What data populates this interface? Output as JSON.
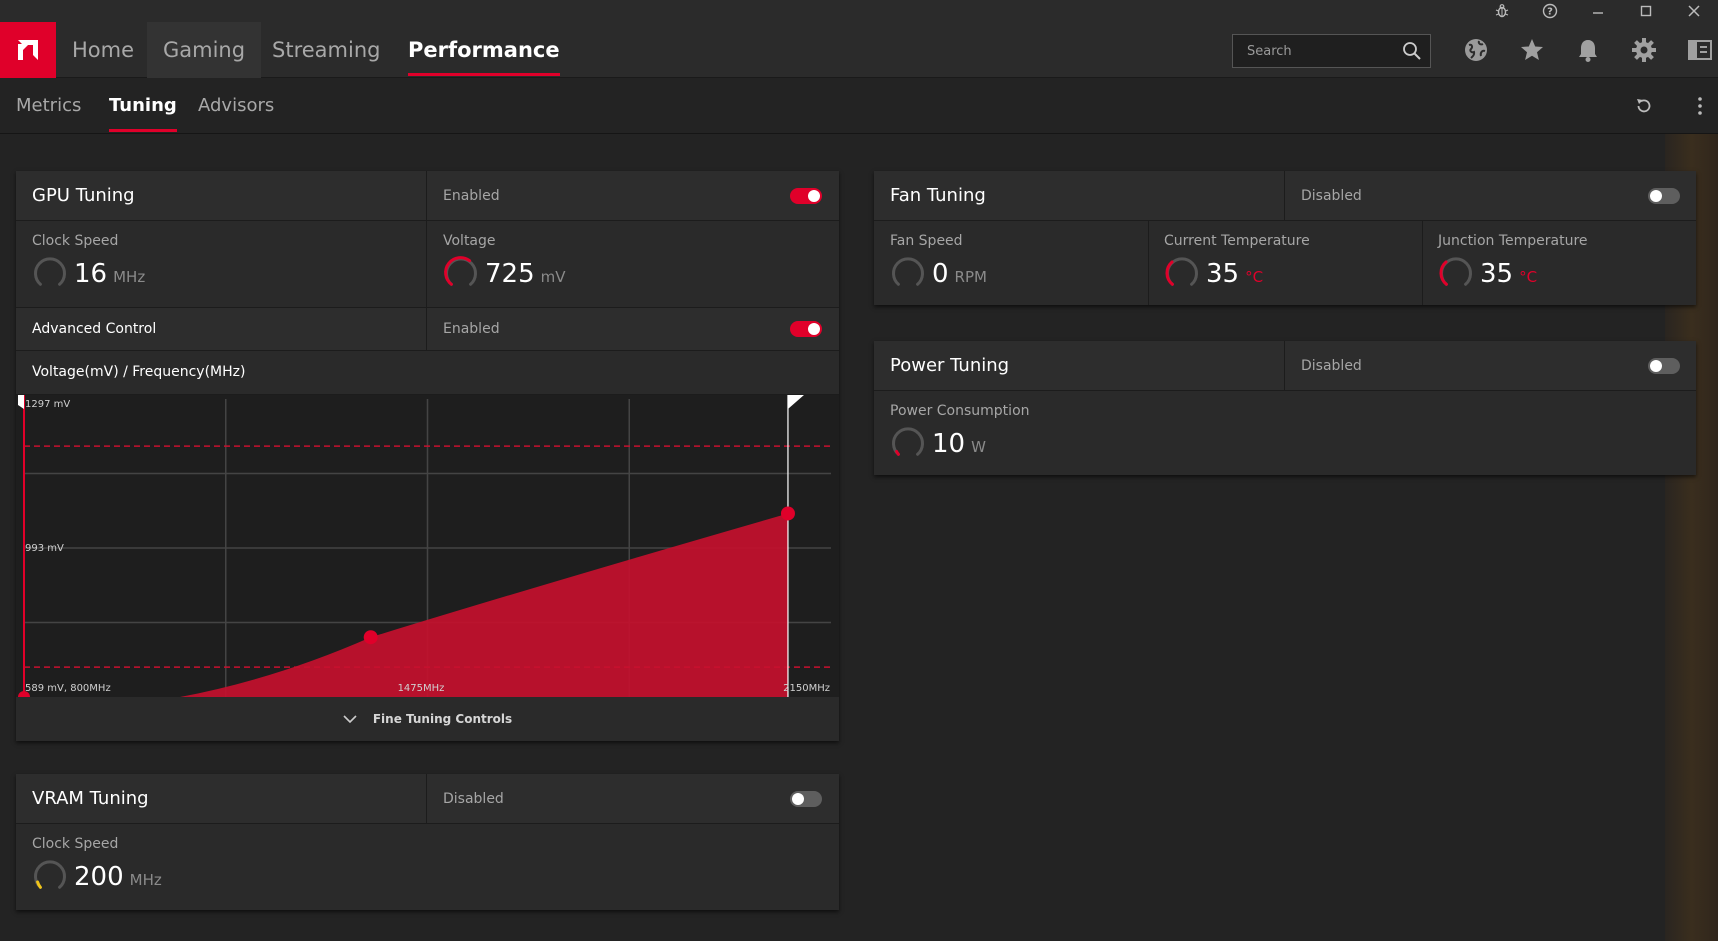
{
  "nav": {
    "tabs": [
      "Home",
      "Gaming",
      "Streaming",
      "Performance"
    ],
    "search_placeholder": "Search"
  },
  "subnav": {
    "tabs": [
      "Metrics",
      "Tuning",
      "Advisors"
    ]
  },
  "gpu": {
    "title": "GPU Tuning",
    "state": "Enabled",
    "clock": {
      "label": "Clock Speed",
      "value": "16",
      "unit": "MHz"
    },
    "voltage": {
      "label": "Voltage",
      "value": "725",
      "unit": "mV"
    },
    "advanced": {
      "label": "Advanced Control",
      "state": "Enabled"
    },
    "curve_title": "Voltage(mV) / Frequency(MHz)",
    "fine_tuning": "Fine Tuning Controls"
  },
  "chart_data": {
    "type": "area",
    "title": "Voltage(mV) / Frequency(MHz)",
    "xlabel": "Frequency (MHz)",
    "ylabel": "Voltage (mV)",
    "xlim": [
      800,
      2150
    ],
    "ylim": [
      589,
      1297
    ],
    "tick_labels": {
      "top": "1297 mV",
      "mid": "993 mV",
      "bottom_left": "589 mV, 800MHz",
      "bottom_mid": "1475MHz",
      "bottom_right": "2150MHz"
    },
    "points": [
      {
        "x": 800,
        "y": 589
      },
      {
        "x": 1380,
        "y": 731
      },
      {
        "x": 2078,
        "y": 1025
      }
    ],
    "limit_lines_mv": [
      1185,
      660
    ],
    "grid": true,
    "color": "#c8102e"
  },
  "fan": {
    "title": "Fan Tuning",
    "state": "Disabled",
    "speed": {
      "label": "Fan Speed",
      "value": "0",
      "unit": "RPM"
    },
    "temp": {
      "label": "Current Temperature",
      "value": "35",
      "unit": "°C"
    },
    "junction": {
      "label": "Junction Temperature",
      "value": "35",
      "unit": "°C"
    }
  },
  "power": {
    "title": "Power Tuning",
    "state": "Disabled",
    "consumption": {
      "label": "Power Consumption",
      "value": "10",
      "unit": "W"
    }
  },
  "vram": {
    "title": "VRAM Tuning",
    "state": "Disabled",
    "clock": {
      "label": "Clock Speed",
      "value": "200",
      "unit": "MHz"
    }
  },
  "colors": {
    "accent": "#e0002a",
    "gauge_track": "#555555",
    "vram_gauge": "#f0c419"
  }
}
